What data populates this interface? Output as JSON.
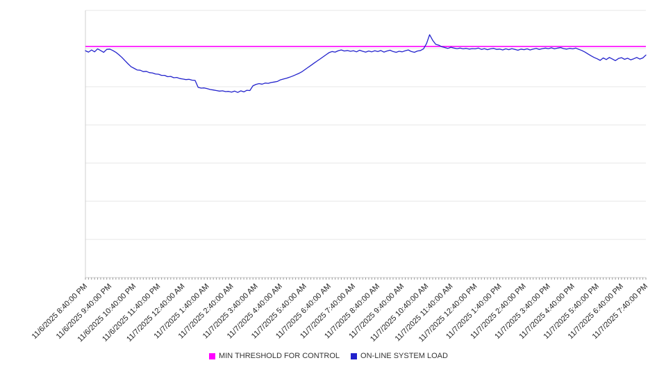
{
  "page": {
    "background": "#ffffff"
  },
  "legend": {
    "position": "bottom-center",
    "items": [
      {
        "label": "MIN THRESHOLD FOR CONTROL",
        "color": "#ff00ff"
      },
      {
        "label": "ON-LINE SYSTEM LOAD",
        "color": "#2222cc"
      }
    ]
  },
  "chart_data": {
    "type": "line",
    "title": "",
    "xlabel": "",
    "ylabel": "",
    "ylim": [
      0,
      100
    ],
    "grid": "horizontal",
    "grid_divisions": 7,
    "y_tick_labels_visible": false,
    "legend_position": "bottom-center",
    "x_start": "11/6/2025 8:40:00 PM",
    "x_end": "11/7/2025 7:40:00 PM",
    "x_tick_interval": "1 hour",
    "x_tick_labels": [
      "11/6/2025 8:40:00 PM",
      "11/6/2025 9:40:00 PM",
      "11/6/2025 10:40:00 PM",
      "11/6/2025 11:40:00 PM",
      "11/7/2025 12:40:00 AM",
      "11/7/2025 1:40:00 AM",
      "11/7/2025 2:40:00 AM",
      "11/7/2025 3:40:00 AM",
      "11/7/2025 4:40:00 AM",
      "11/7/2025 5:40:00 AM",
      "11/7/2025 6:40:00 AM",
      "11/7/2025 7:40:00 AM",
      "11/7/2025 8:40:00 AM",
      "11/7/2025 9:40:00 AM",
      "11/7/2025 10:40:00 AM",
      "11/7/2025 11:40:00 AM",
      "11/7/2025 12:40:00 PM",
      "11/7/2025 1:40:00 PM",
      "11/7/2025 2:40:00 PM",
      "11/7/2025 3:40:00 PM",
      "11/7/2025 4:40:00 PM",
      "11/7/2025 5:40:00 PM",
      "11/7/2025 6:40:00 PM",
      "11/7/2025 7:40:00 PM"
    ],
    "series": [
      {
        "name": "MIN THRESHOLD FOR CONTROL",
        "style": "horizontal-line",
        "value": 86.5,
        "color": "#ff00ff"
      },
      {
        "name": "ON-LINE SYSTEM LOAD",
        "style": "line",
        "color": "#2222cc",
        "sample_interval_minutes": 7.5,
        "values": [
          84.9,
          84.4,
          85.2,
          84.5,
          85.6,
          85.0,
          84.3,
          85.4,
          85.5,
          85.0,
          84.3,
          83.4,
          82.4,
          81.2,
          80.0,
          78.9,
          78.3,
          77.7,
          77.6,
          77.1,
          77.2,
          76.7,
          76.6,
          76.2,
          76.1,
          75.7,
          75.7,
          75.2,
          75.3,
          74.8,
          74.9,
          74.5,
          74.3,
          74.1,
          74.2,
          73.9,
          73.8,
          71.2,
          70.9,
          71.0,
          70.7,
          70.4,
          70.2,
          70.0,
          69.8,
          69.9,
          69.6,
          69.7,
          69.4,
          69.8,
          69.3,
          69.9,
          69.5,
          70.1,
          70.0,
          71.8,
          72.3,
          72.6,
          72.4,
          72.8,
          72.7,
          73.0,
          73.2,
          73.4,
          74.0,
          74.3,
          74.6,
          75.0,
          75.4,
          75.9,
          76.4,
          77.0,
          77.8,
          78.6,
          79.4,
          80.2,
          81.0,
          81.8,
          82.6,
          83.4,
          84.2,
          84.6,
          84.4,
          84.9,
          85.2,
          84.8,
          85.0,
          84.7,
          84.9,
          84.5,
          85.1,
          84.7,
          84.4,
          84.8,
          84.5,
          84.9,
          84.6,
          85.0,
          84.4,
          84.8,
          85.1,
          84.6,
          84.3,
          84.7,
          84.5,
          84.9,
          85.2,
          84.6,
          84.3,
          84.8,
          85.0,
          85.6,
          87.6,
          90.9,
          88.8,
          87.3,
          87.0,
          86.4,
          86.1,
          85.8,
          86.2,
          85.9,
          85.7,
          85.9,
          85.6,
          85.8,
          85.5,
          85.7,
          85.6,
          85.9,
          85.4,
          85.7,
          85.3,
          85.6,
          85.8,
          85.4,
          85.5,
          85.2,
          85.6,
          85.3,
          85.7,
          85.4,
          85.1,
          85.5,
          85.3,
          85.6,
          85.2,
          85.5,
          85.8,
          85.4,
          85.7,
          85.9,
          85.7,
          86.0,
          85.6,
          85.9,
          86.1,
          85.7,
          85.5,
          85.8,
          85.6,
          85.9,
          85.4,
          85.0,
          84.4,
          83.7,
          83.0,
          82.4,
          81.9,
          81.3,
          82.2,
          81.6,
          82.4,
          81.8,
          81.2,
          82.0,
          82.3,
          81.7,
          82.1,
          81.5,
          81.9,
          82.4,
          81.8,
          82.2,
          83.3
        ]
      }
    ]
  }
}
